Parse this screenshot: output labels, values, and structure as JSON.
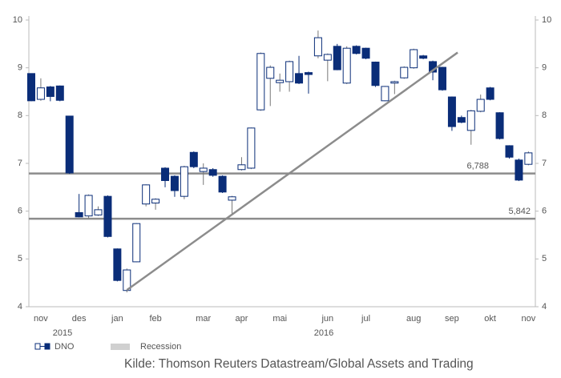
{
  "chart_data": {
    "type": "candlestick",
    "categories": [
      null,
      "nov",
      null,
      null,
      null,
      "des",
      null,
      null,
      null,
      "jan",
      null,
      null,
      null,
      "feb",
      null,
      null,
      null,
      null,
      "mar",
      null,
      null,
      null,
      "apr",
      null,
      null,
      null,
      "mai",
      null,
      null,
      null,
      null,
      "jun",
      null,
      null,
      null,
      "jul",
      null,
      null,
      null,
      null,
      "aug",
      null,
      null,
      null,
      "sep",
      null,
      null,
      null,
      "okt",
      null,
      null,
      null,
      "nov"
    ],
    "years": [
      "2015",
      "2016"
    ],
    "series": [
      {
        "name": "DNO",
        "color": "#0a2d78",
        "open": [
          8.88,
          8.34,
          8.6,
          8.62,
          7.99,
          5.97,
          5.9,
          5.92,
          6.31,
          5.21,
          4.34,
          4.94,
          6.15,
          6.17,
          6.9,
          6.73,
          6.31,
          7.23,
          6.83,
          6.87,
          6.73,
          6.23,
          6.87,
          6.9,
          8.12,
          8.78,
          8.69,
          8.71,
          8.88,
          8.9,
          9.25,
          9.16,
          9.45,
          8.68,
          9.45,
          9.41,
          9.12,
          8.31,
          8.68,
          8.79,
          9.0,
          9.25,
          9.13,
          9.01,
          8.39,
          7.96,
          7.69,
          8.09,
          8.58,
          8.06,
          7.37,
          7.07,
          6.98
        ],
        "high": [
          8.88,
          8.78,
          8.62,
          8.63,
          7.99,
          6.36,
          6.35,
          6.1,
          6.33,
          5.22,
          4.8,
          5.75,
          6.56,
          6.27,
          6.92,
          6.75,
          6.95,
          7.25,
          7.0,
          6.9,
          6.75,
          6.32,
          7.13,
          7.75,
          9.32,
          9.05,
          8.88,
          9.15,
          9.25,
          8.92,
          9.78,
          9.3,
          9.5,
          9.45,
          9.47,
          9.42,
          9.13,
          8.62,
          8.73,
          9.03,
          9.4,
          9.27,
          9.15,
          9.02,
          8.4,
          8.0,
          8.12,
          8.44,
          8.6,
          8.07,
          7.38,
          7.1,
          7.25
        ],
        "low": [
          8.3,
          8.31,
          8.3,
          8.3,
          6.78,
          5.87,
          5.85,
          5.9,
          5.45,
          4.53,
          4.3,
          4.93,
          6.1,
          6.03,
          6.5,
          6.3,
          6.25,
          6.9,
          6.55,
          6.72,
          6.38,
          5.95,
          6.85,
          6.88,
          8.1,
          8.2,
          8.5,
          8.5,
          8.66,
          8.46,
          9.2,
          8.72,
          8.95,
          8.66,
          9.28,
          9.18,
          8.6,
          8.3,
          8.45,
          8.77,
          8.98,
          9.18,
          8.74,
          8.52,
          7.68,
          7.84,
          7.39,
          8.07,
          8.32,
          7.5,
          7.1,
          6.63,
          6.96
        ],
        "close": [
          8.31,
          8.58,
          8.4,
          8.32,
          6.8,
          5.88,
          6.33,
          6.03,
          5.47,
          4.55,
          4.77,
          5.74,
          6.55,
          6.25,
          6.64,
          6.43,
          6.93,
          6.93,
          6.9,
          6.75,
          6.4,
          6.3,
          6.97,
          7.74,
          9.3,
          9.01,
          8.74,
          9.13,
          8.68,
          8.86,
          9.63,
          9.28,
          8.96,
          9.41,
          9.3,
          9.2,
          8.63,
          8.61,
          8.71,
          9.01,
          9.38,
          9.2,
          8.91,
          8.54,
          7.77,
          7.86,
          8.1,
          8.34,
          8.34,
          7.52,
          7.13,
          6.65,
          7.22
        ]
      }
    ],
    "recession_legend": "Recession",
    "recession_color": "#d0d0d0",
    "levels": [
      {
        "value": 6.788,
        "label": "6,788"
      },
      {
        "value": 5.842,
        "label": "5,842"
      }
    ],
    "trendline": {
      "x": [
        10,
        44.6
      ],
      "y": [
        4.35,
        9.32
      ]
    },
    "line_color": "#8c8c8c",
    "ylim": [
      4,
      10
    ],
    "yticks": [
      4,
      5,
      6,
      7,
      8,
      9,
      10
    ],
    "y2lim": [
      4,
      10
    ],
    "y2ticks": [
      4,
      5,
      6,
      7,
      8,
      9,
      10
    ],
    "legend": "bottom-left",
    "source": "Kilde: Thomson Reuters Datastream/Global Assets and Trading"
  }
}
